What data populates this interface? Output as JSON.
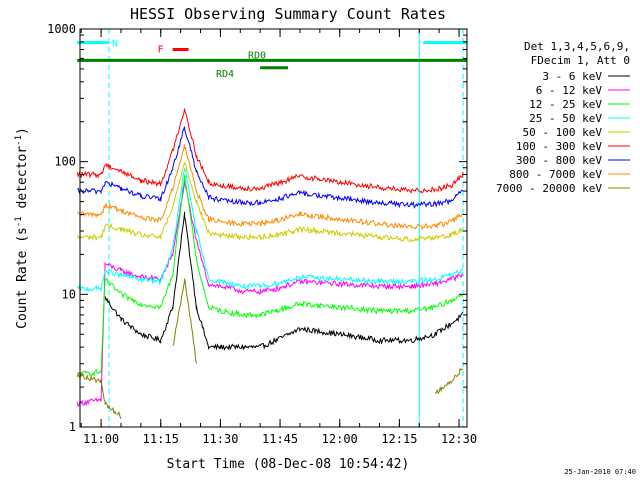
{
  "chart_data": {
    "type": "line",
    "title": "HESSI Observing Summary Count Rates",
    "xlabel": "Start Time (08-Dec-08 10:54:42)",
    "ylabel_main": "Count Rate (s",
    "ylabel_sup1": "-1",
    "ylabel_mid": " detector",
    "ylabel_sup2": "-1",
    "ylabel_end": ")",
    "y_scale": "log",
    "ylim": [
      1,
      1000
    ],
    "xlim": [
      "10:54:42",
      "12:32:00"
    ],
    "x_ticks": [
      "11:00",
      "11:15",
      "11:30",
      "11:45",
      "12:00",
      "12:15",
      "12:30"
    ],
    "y_ticks": [
      "1",
      "10",
      "100",
      "1000"
    ],
    "legend_header": [
      "Det 1,3,4,5,6,9,",
      "FDecim 1, Att 0"
    ],
    "series": [
      {
        "name": "3 - 6 keV",
        "color": "#000000",
        "times": [
          "10:54",
          "11:00",
          "11:01",
          "11:05",
          "11:10",
          "11:15",
          "11:18",
          "11:21",
          "11:24",
          "11:27",
          "11:30",
          "11:36",
          "11:40",
          "11:44",
          "11:50",
          "12:00",
          "12:10",
          "12:18",
          "12:24",
          "12:28",
          "12:31"
        ],
        "values": [
          null,
          null,
          9.5,
          6.5,
          5.0,
          4.5,
          8,
          40,
          8,
          4,
          4,
          4,
          4,
          4.5,
          5.5,
          5,
          4.5,
          4.5,
          5,
          6,
          7
        ]
      },
      {
        "name": "6 - 12 keV",
        "color": "#ff00ff",
        "times": [
          "10:54",
          "11:00",
          "11:01",
          "11:05",
          "11:10",
          "11:15",
          "11:18",
          "11:21",
          "11:24",
          "11:27",
          "11:30",
          "11:36",
          "11:40",
          "11:44",
          "11:50",
          "12:00",
          "12:10",
          "12:18",
          "12:24",
          "12:28",
          "12:31"
        ],
        "values": [
          1.5,
          1.6,
          17,
          15,
          13.5,
          13,
          20,
          70,
          25,
          12,
          11.5,
          10.5,
          10.5,
          11,
          12.5,
          12,
          11.5,
          11.5,
          12,
          13,
          14
        ]
      },
      {
        "name": "12 - 25 keV",
        "color": "#00ff00",
        "times": [
          "10:54",
          "11:00",
          "11:01",
          "11:05",
          "11:10",
          "11:15",
          "11:18",
          "11:21",
          "11:24",
          "11:27",
          "11:30",
          "11:36",
          "11:40",
          "11:44",
          "11:50",
          "12:00",
          "12:10",
          "12:18",
          "12:24",
          "12:28",
          "12:31"
        ],
        "values": [
          2.5,
          2.6,
          13,
          10,
          8.5,
          8,
          14,
          80,
          18,
          8,
          7.5,
          7,
          7,
          7.5,
          8.5,
          8,
          7.5,
          7.5,
          8,
          9,
          10
        ]
      },
      {
        "name": "25 - 50 keV",
        "color": "#00ffff",
        "times": [
          "10:54",
          "11:00",
          "11:01",
          "11:05",
          "11:10",
          "11:15",
          "11:18",
          "11:21",
          "11:24",
          "11:27",
          "11:30",
          "11:36",
          "11:40",
          "11:44",
          "11:50",
          "12:00",
          "12:10",
          "12:18",
          "12:24",
          "12:28",
          "12:31"
        ],
        "values": [
          11,
          11,
          15,
          14,
          13,
          12.5,
          22,
          90,
          30,
          13,
          12.5,
          11.5,
          11.5,
          12,
          13.5,
          13,
          12.5,
          12.5,
          13,
          14,
          15
        ]
      },
      {
        "name": "50 - 100 keV",
        "color": "#cccc00",
        "times": [
          "10:54",
          "11:00",
          "11:01",
          "11:05",
          "11:10",
          "11:15",
          "11:18",
          "11:21",
          "11:24",
          "11:27",
          "11:30",
          "11:36",
          "11:40",
          "11:44",
          "11:50",
          "12:00",
          "12:10",
          "12:18",
          "12:24",
          "12:28",
          "12:31"
        ],
        "values": [
          27,
          27,
          33,
          31,
          28,
          27,
          45,
          100,
          50,
          29,
          28,
          27,
          27,
          28,
          31,
          29,
          27,
          26,
          27,
          28,
          31
        ]
      },
      {
        "name": "100 - 300 keV",
        "color": "#ff0000",
        "times": [
          "10:54",
          "11:00",
          "11:01",
          "11:05",
          "11:10",
          "11:15",
          "11:18",
          "11:21",
          "11:24",
          "11:27",
          "11:30",
          "11:36",
          "11:40",
          "11:44",
          "11:50",
          "12:00",
          "12:10",
          "12:18",
          "12:24",
          "12:28",
          "12:31"
        ],
        "values": [
          80,
          80,
          95,
          85,
          72,
          68,
          120,
          250,
          110,
          70,
          66,
          63,
          63,
          68,
          78,
          70,
          64,
          60,
          62,
          66,
          80
        ]
      },
      {
        "name": "300 - 800 keV",
        "color": "#0000ff",
        "times": [
          "10:54",
          "11:00",
          "11:01",
          "11:05",
          "11:10",
          "11:15",
          "11:18",
          "11:21",
          "11:24",
          "11:27",
          "11:30",
          "11:36",
          "11:40",
          "11:44",
          "11:50",
          "12:00",
          "12:10",
          "12:18",
          "12:24",
          "12:28",
          "12:31"
        ],
        "values": [
          60,
          60,
          70,
          63,
          55,
          52,
          90,
          180,
          85,
          54,
          51,
          49,
          49,
          52,
          58,
          53,
          49,
          47,
          48,
          51,
          60
        ]
      },
      {
        "name": "800 - 7000 keV",
        "color": "#ff8800",
        "times": [
          "10:54",
          "11:00",
          "11:01",
          "11:05",
          "11:10",
          "11:15",
          "11:18",
          "11:21",
          "11:24",
          "11:27",
          "11:30",
          "11:36",
          "11:40",
          "11:44",
          "11:50",
          "12:00",
          "12:10",
          "12:18",
          "12:24",
          "12:28",
          "12:31"
        ],
        "values": [
          40,
          40,
          47,
          43,
          38,
          36,
          62,
          130,
          60,
          37,
          35,
          34,
          34,
          36,
          40,
          37,
          34,
          32,
          33,
          35,
          41
        ]
      },
      {
        "name": "7000 - 20000 keV",
        "color": "#808000",
        "times": [
          "10:54",
          "11:00",
          "11:01",
          "11:05",
          "11:10",
          "11:15",
          "11:18",
          "11:21",
          "11:24",
          "11:27",
          "11:30",
          "11:36",
          "11:40",
          "11:44",
          "11:50",
          "12:00",
          "12:10",
          "12:18",
          "12:24",
          "12:28",
          "12:31"
        ],
        "values": [
          2.5,
          2.2,
          1.5,
          1.2,
          null,
          null,
          4,
          13,
          3,
          null,
          null,
          null,
          null,
          null,
          null,
          null,
          null,
          null,
          1.8,
          2.2,
          2.8
        ]
      }
    ],
    "annotations": [
      {
        "label": "N",
        "color": "#00ffff",
        "start": "10:54",
        "end": "11:02",
        "level": 790
      },
      {
        "label": "N",
        "color": "#00ffff",
        "start": "12:21",
        "end": "12:32",
        "level": 790,
        "unlabeled": true
      },
      {
        "label": "F",
        "color": "#ff0000",
        "start": "11:18",
        "end": "11:22",
        "level": 700
      },
      {
        "label": "RD0",
        "color": "#008000",
        "start": "10:54",
        "end": "12:32",
        "level": 580
      },
      {
        "label": "RD4",
        "color": "#008000",
        "start": "11:40",
        "end": "11:47",
        "level": 510
      }
    ],
    "vertical_lines": [
      {
        "time": "11:02",
        "color": "#00ffff",
        "dashed": true
      },
      {
        "time": "12:20",
        "color": "#00ffff",
        "dashed": false
      },
      {
        "time": "12:31",
        "color": "#00ffff",
        "dashed": true
      }
    ]
  },
  "footer_timestamp": "25-Jan-2010 07:40"
}
